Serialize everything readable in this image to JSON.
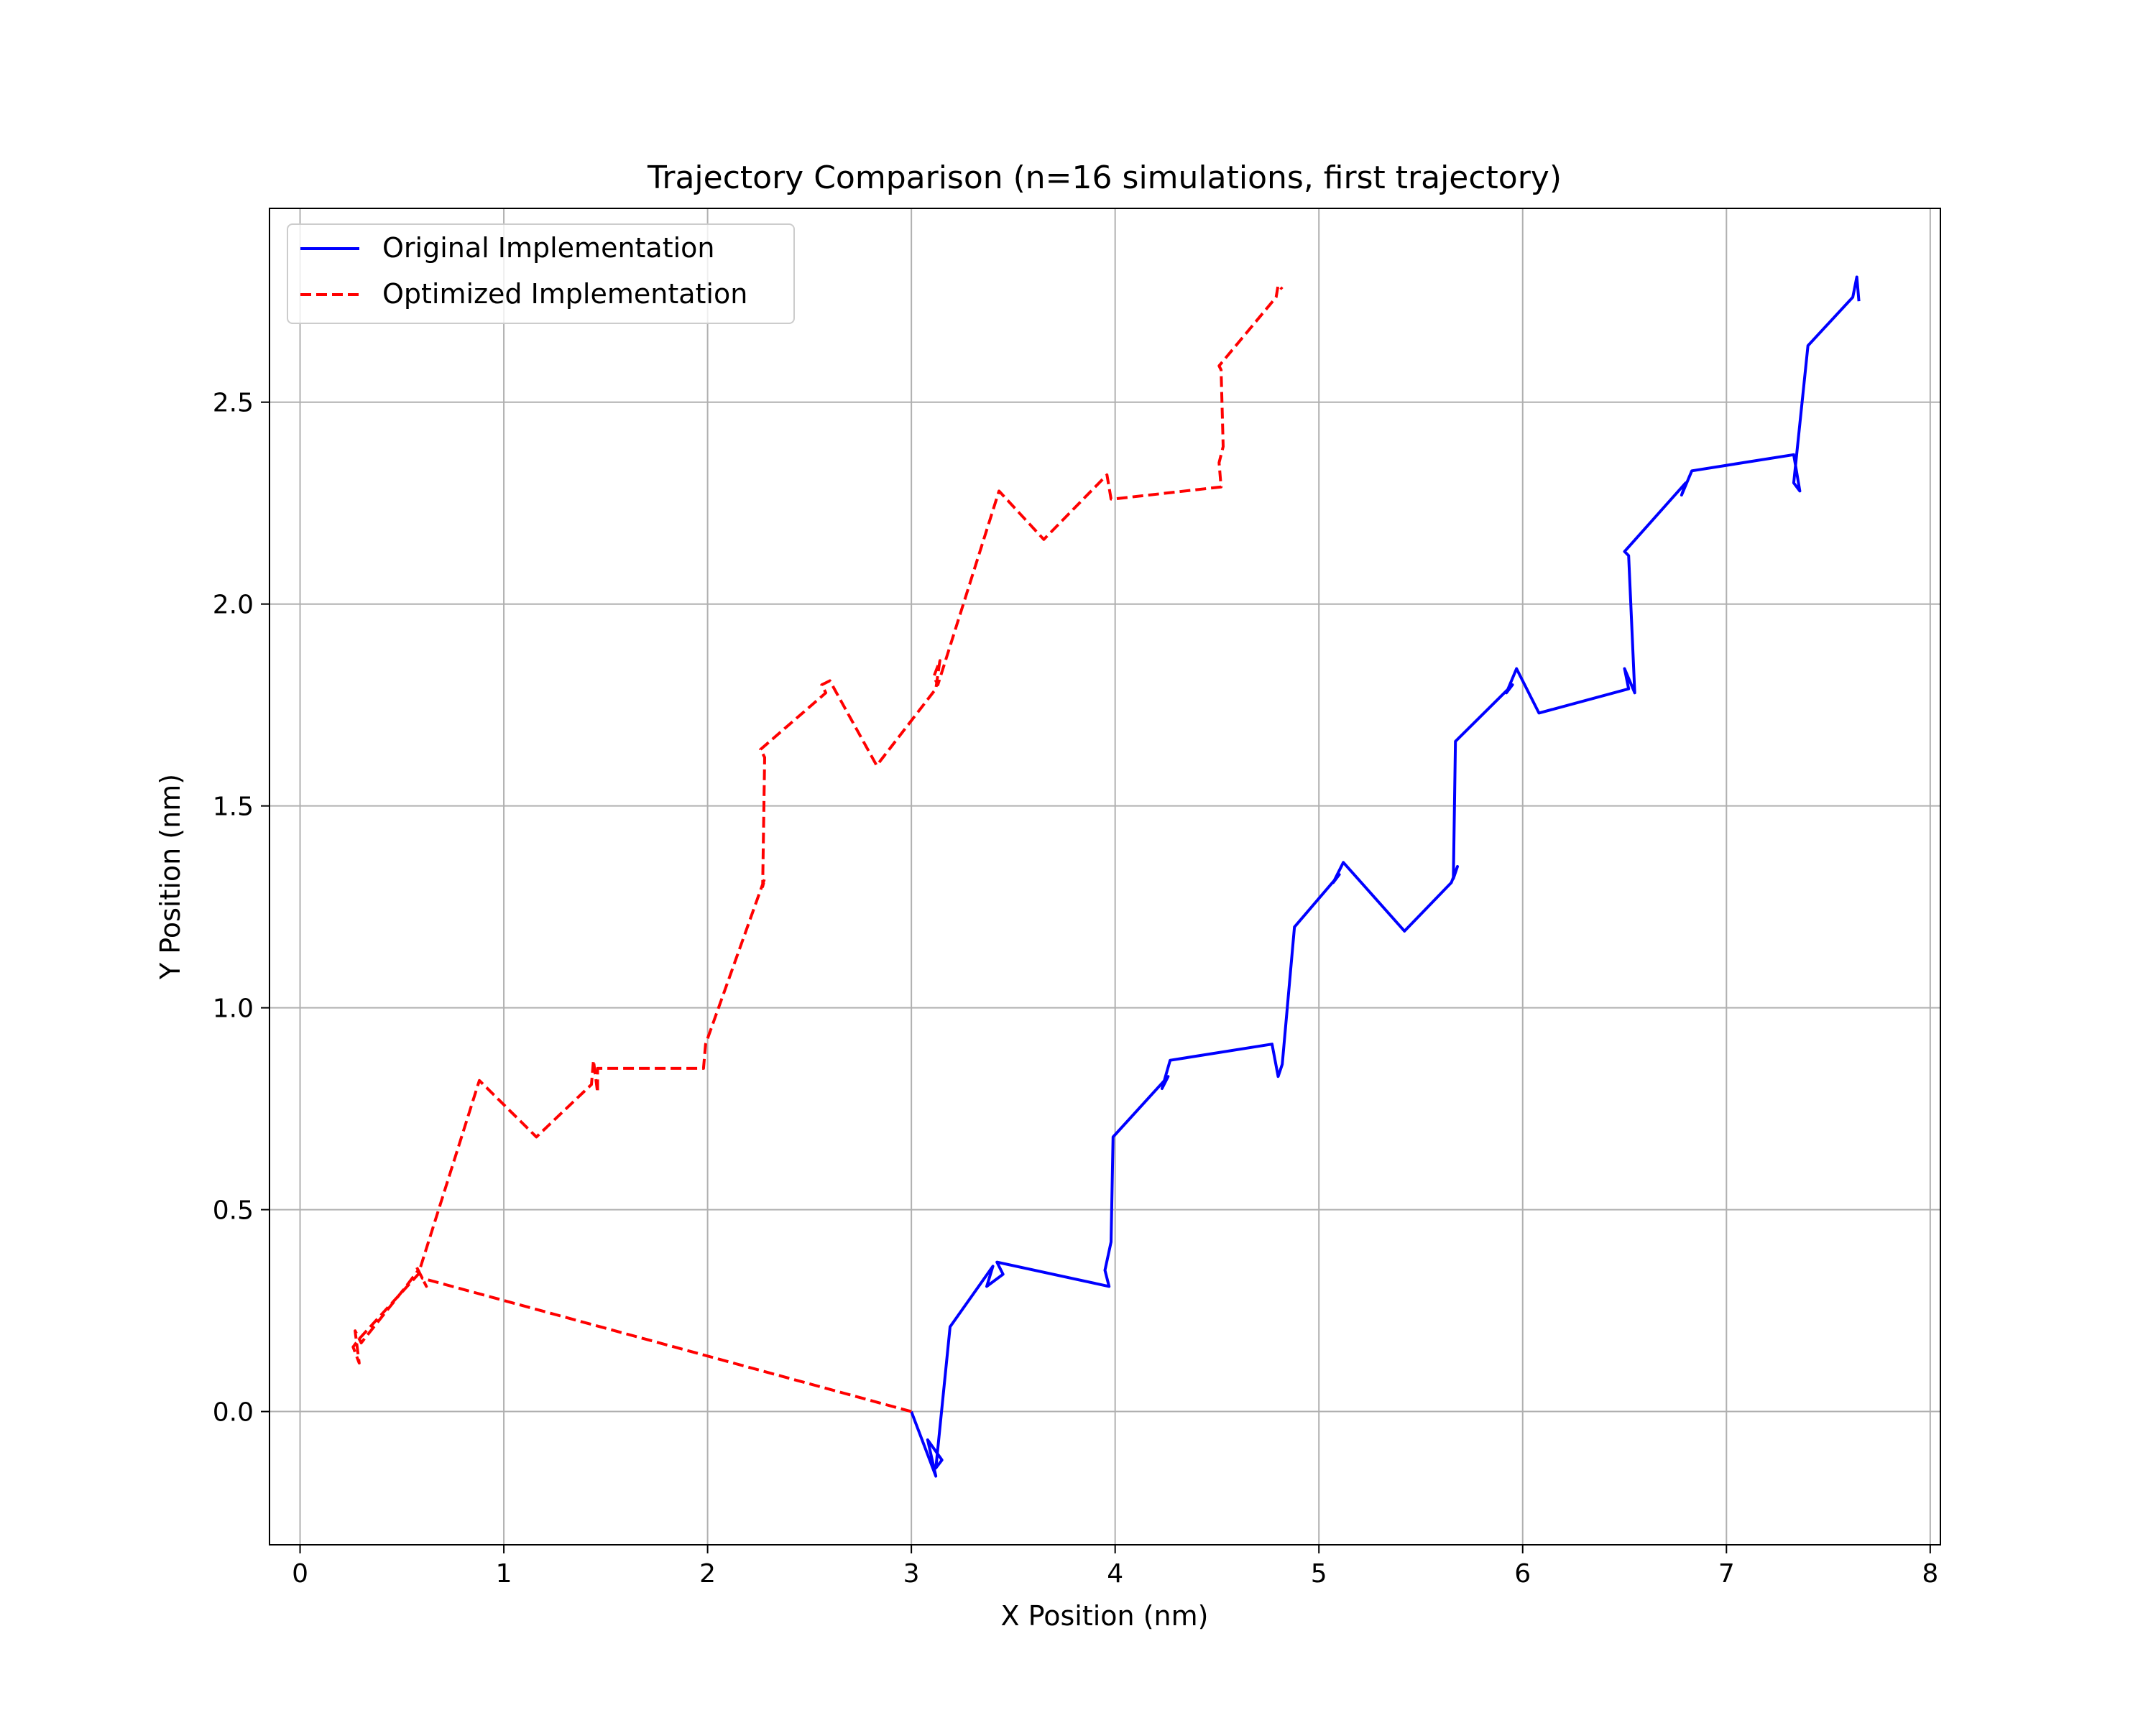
{
  "chart_data": {
    "type": "line",
    "title": "Trajectory Comparison (n=16 simulations, first trajectory)",
    "xlabel": "X Position (nm)",
    "ylabel": "Y Position (nm)",
    "xlim": [
      -0.15,
      8.05
    ],
    "ylim": [
      -0.33,
      2.98
    ],
    "xticks": [
      0,
      1,
      2,
      3,
      4,
      5,
      6,
      7,
      8
    ],
    "xtick_labels": [
      "0",
      "1",
      "2",
      "3",
      "4",
      "5",
      "6",
      "7",
      "8"
    ],
    "yticks": [
      0.0,
      0.5,
      1.0,
      1.5,
      2.0,
      2.5
    ],
    "ytick_labels": [
      "0.0",
      "0.5",
      "1.0",
      "1.5",
      "2.0",
      "2.5"
    ],
    "grid": true,
    "legend_position": "top-left",
    "series": [
      {
        "name": "Original Implementation",
        "color": "#0000ff",
        "style": "solid",
        "x": [
          3.0,
          3.12,
          3.08,
          3.15,
          3.12,
          3.19,
          3.4,
          3.37,
          3.45,
          3.42,
          3.97,
          3.95,
          3.98,
          3.99,
          4.26,
          4.23,
          4.27,
          4.77,
          4.8,
          4.82,
          4.88,
          5.1,
          5.07,
          5.12,
          5.42,
          5.65,
          5.68,
          5.66,
          5.67,
          5.95,
          5.92,
          5.97,
          6.08,
          6.52,
          6.5,
          6.55,
          6.52,
          6.5,
          6.8,
          6.78,
          6.83,
          7.33,
          7.36,
          7.33,
          7.4,
          7.62,
          7.64,
          7.65
        ],
        "y": [
          0.0,
          -0.16,
          -0.07,
          -0.12,
          -0.14,
          0.21,
          0.36,
          0.31,
          0.34,
          0.37,
          0.31,
          0.35,
          0.42,
          0.68,
          0.83,
          0.8,
          0.87,
          0.91,
          0.83,
          0.86,
          1.2,
          1.33,
          1.31,
          1.36,
          1.19,
          1.31,
          1.35,
          1.32,
          1.66,
          1.8,
          1.78,
          1.84,
          1.73,
          1.79,
          1.84,
          1.78,
          2.12,
          2.13,
          2.3,
          2.27,
          2.33,
          2.37,
          2.28,
          2.3,
          2.64,
          2.76,
          2.81,
          2.75
        ]
      },
      {
        "name": "Optimized Implementation",
        "color": "#ff0000",
        "style": "dashed",
        "x": [
          3.0,
          0.6,
          0.57,
          0.62,
          0.58,
          0.52,
          0.3,
          0.27,
          0.29,
          0.26,
          0.29,
          0.58,
          0.88,
          1.16,
          1.43,
          1.44,
          1.46,
          1.46,
          1.98,
          1.99,
          2.28,
          2.27,
          2.28,
          2.26,
          2.58,
          2.56,
          2.6,
          2.83,
          3.12,
          3.14,
          3.11,
          3.13,
          3.43,
          3.65,
          3.96,
          3.98,
          3.99,
          4.52,
          4.51,
          4.53,
          4.52,
          4.51,
          4.79,
          4.8,
          4.82
        ],
        "y": [
          0.0,
          0.33,
          0.36,
          0.31,
          0.35,
          0.31,
          0.17,
          0.2,
          0.12,
          0.16,
          0.18,
          0.34,
          0.82,
          0.68,
          0.81,
          0.87,
          0.79,
          0.85,
          0.85,
          0.91,
          1.32,
          1.3,
          1.62,
          1.64,
          1.78,
          1.8,
          1.81,
          1.6,
          1.79,
          1.86,
          1.82,
          1.8,
          2.28,
          2.16,
          2.32,
          2.26,
          2.26,
          2.29,
          2.35,
          2.39,
          2.58,
          2.59,
          2.76,
          2.79,
          2.78
        ]
      }
    ]
  }
}
